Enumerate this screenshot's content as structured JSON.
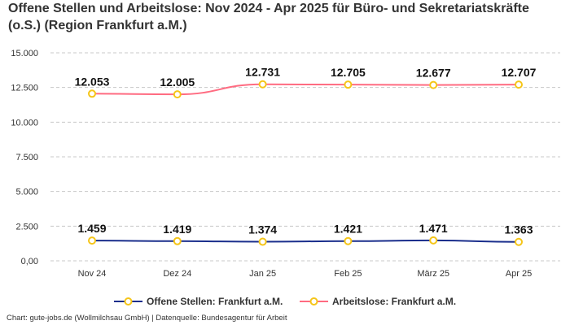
{
  "chart_data": {
    "type": "line",
    "title": "Offene Stellen und Arbeitslose: Nov 2024 - Apr 2025 für Büro- und Sekretariatskräfte (o.S.) (Region Frankfurt a.M.)",
    "categories": [
      "Nov 24",
      "Dez 24",
      "Jan 25",
      "Feb 25",
      "März 25",
      "Apr 25"
    ],
    "series": [
      {
        "name": "Offene Stellen: Frankfurt a.M.",
        "color": "#1a2e8c",
        "values": [
          1459,
          1419,
          1374,
          1421,
          1471,
          1363
        ],
        "labels": [
          "1.459",
          "1.419",
          "1.374",
          "1.421",
          "1.471",
          "1.363"
        ]
      },
      {
        "name": "Arbeitslose: Frankfurt a.M.",
        "color": "#ff6b81",
        "values": [
          12053,
          12005,
          12731,
          12705,
          12677,
          12707
        ],
        "labels": [
          "12.053",
          "12.005",
          "12.731",
          "12.705",
          "12.677",
          "12.707"
        ]
      }
    ],
    "marker_color": "#f5c518",
    "ylim": [
      0,
      15000
    ],
    "yticks": [
      0,
      2500,
      5000,
      7500,
      10000,
      12500,
      15000
    ],
    "ytick_labels": [
      "0,00",
      "2.500",
      "5.000",
      "7.500",
      "10.000",
      "12.500",
      "15.000"
    ],
    "grid": true,
    "legend_position": "bottom",
    "xlabel": "",
    "ylabel": ""
  },
  "credit": "Chart: gute-jobs.de (Wollmilchsau GmbH) | Datenquelle: Bundesagentur für Arbeit"
}
